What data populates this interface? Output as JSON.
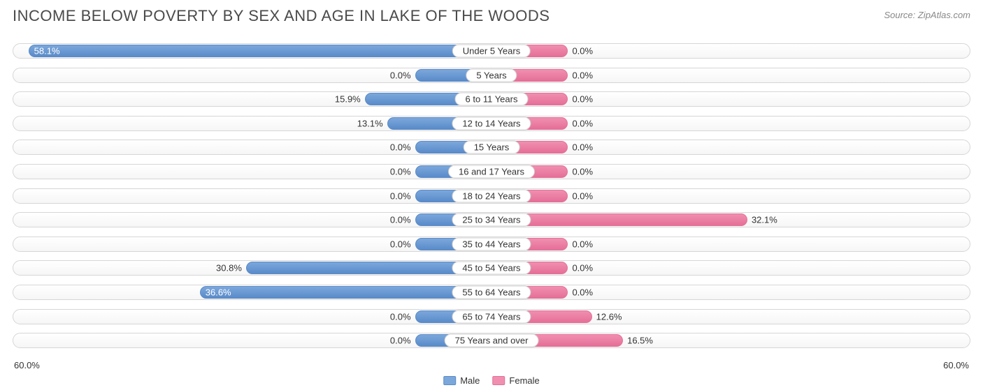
{
  "title": "INCOME BELOW POVERTY BY SEX AND AGE IN LAKE OF THE WOODS",
  "source": "Source: ZipAtlas.com",
  "chart": {
    "type": "diverging-bar",
    "axis_max": 60.0,
    "axis_label_left": "60.0%",
    "axis_label_right": "60.0%",
    "min_bar_pct": 8.0,
    "colors": {
      "male_fill": "#7ba7db",
      "male_border": "#5a8bc9",
      "female_fill": "#f08fb0",
      "female_border": "#e56f98",
      "track_border": "#d6d6d6",
      "text": "#333333",
      "title_text": "#4a4a4a",
      "source_text": "#888888",
      "background": "#ffffff"
    },
    "title_fontsize": 22,
    "label_fontsize": 13,
    "inside_threshold": 35.0,
    "legend": {
      "male": "Male",
      "female": "Female"
    },
    "rows": [
      {
        "label": "Under 5 Years",
        "male": 58.1,
        "female": 0.0
      },
      {
        "label": "5 Years",
        "male": 0.0,
        "female": 0.0
      },
      {
        "label": "6 to 11 Years",
        "male": 15.9,
        "female": 0.0
      },
      {
        "label": "12 to 14 Years",
        "male": 13.1,
        "female": 0.0
      },
      {
        "label": "15 Years",
        "male": 0.0,
        "female": 0.0
      },
      {
        "label": "16 and 17 Years",
        "male": 0.0,
        "female": 0.0
      },
      {
        "label": "18 to 24 Years",
        "male": 0.0,
        "female": 0.0
      },
      {
        "label": "25 to 34 Years",
        "male": 0.0,
        "female": 32.1
      },
      {
        "label": "35 to 44 Years",
        "male": 0.0,
        "female": 0.0
      },
      {
        "label": "45 to 54 Years",
        "male": 30.8,
        "female": 0.0
      },
      {
        "label": "55 to 64 Years",
        "male": 36.6,
        "female": 0.0
      },
      {
        "label": "65 to 74 Years",
        "male": 0.0,
        "female": 12.6
      },
      {
        "label": "75 Years and over",
        "male": 0.0,
        "female": 16.5
      }
    ]
  }
}
